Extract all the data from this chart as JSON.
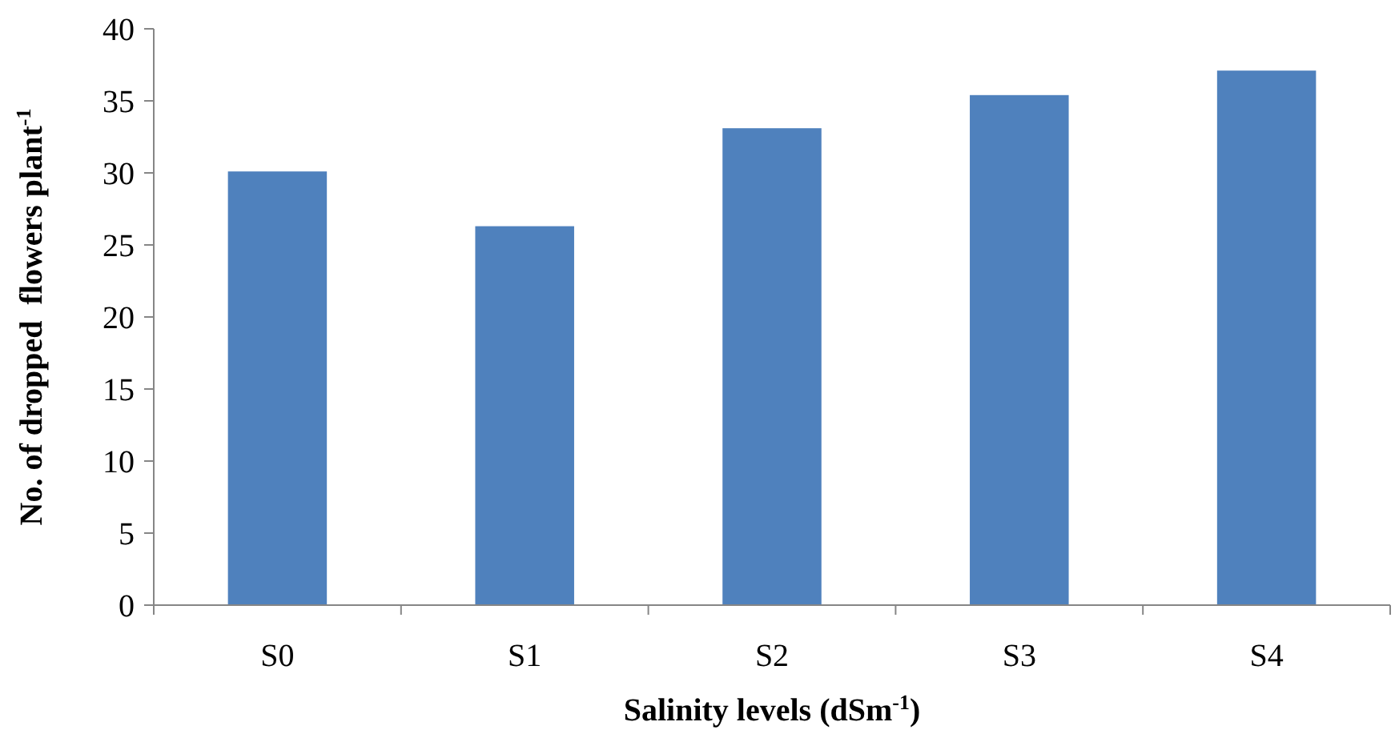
{
  "chart_data": {
    "type": "bar",
    "xlabel": "Salinity levels (dSm$^{-1}$)",
    "ylabel": "No. of dropped  flowers plant$^{-1}$",
    "categories": [
      "S0",
      "S1",
      "S2",
      "S3",
      "S4"
    ],
    "values": [
      30.1,
      26.3,
      33.1,
      35.4,
      37.1
    ],
    "color": "#4f81bd",
    "ylim": [
      0,
      40
    ],
    "yticks": [
      0,
      5,
      10,
      15,
      20,
      25,
      30,
      35,
      40
    ],
    "grid": false
  }
}
